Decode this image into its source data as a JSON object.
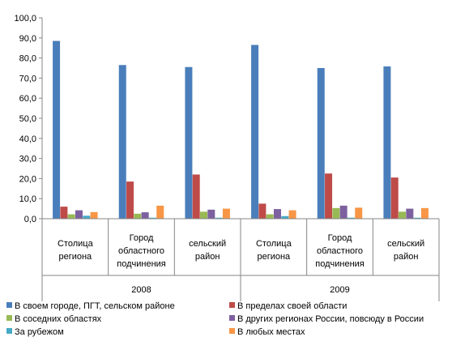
{
  "chart_data": {
    "type": "bar",
    "title": "",
    "xlabel": "",
    "ylabel": "",
    "ylim": [
      0,
      100
    ],
    "yticks": [
      "0,0",
      "10,0",
      "20,0",
      "30,0",
      "40,0",
      "50,0",
      "60,0",
      "70,0",
      "80,0",
      "90,0",
      "100,0"
    ],
    "grid": false,
    "legend_position": "bottom",
    "groups": [
      {
        "label": "2008",
        "categories": [
          [
            "Столица",
            "региона"
          ],
          [
            "Город",
            "областного",
            "подчинения"
          ],
          [
            "сельский",
            "район"
          ]
        ]
      },
      {
        "label": "2009",
        "categories": [
          [
            "Столица",
            "региона"
          ],
          [
            "Город",
            "областного",
            "подчинения"
          ],
          [
            "сельский",
            "район"
          ]
        ]
      }
    ],
    "series": [
      {
        "name": "В своем городе, ПГТ, сельском районе",
        "color": "#4a7ebb",
        "values": [
          88.5,
          76.5,
          75.5,
          86.5,
          75.0,
          75.8
        ]
      },
      {
        "name": "В пределах своей области",
        "color": "#be4b48",
        "values": [
          6.0,
          18.5,
          22.0,
          7.5,
          22.5,
          20.5
        ]
      },
      {
        "name": "В соседних областях",
        "color": "#98b954",
        "values": [
          2.2,
          2.5,
          3.5,
          2.2,
          5.3,
          3.5
        ]
      },
      {
        "name": "В других регионах России, повсюду в России",
        "color": "#7d60a0",
        "values": [
          4.2,
          3.2,
          4.5,
          4.8,
          6.5,
          5.0
        ]
      },
      {
        "name": "За рубежом",
        "color": "#46aac5",
        "values": [
          1.5,
          0.5,
          0.5,
          1.3,
          0.5,
          0.5
        ]
      },
      {
        "name": "В любых местах",
        "color": "#f79646",
        "values": [
          3.3,
          6.5,
          5.0,
          4.2,
          5.5,
          5.3
        ]
      }
    ]
  }
}
